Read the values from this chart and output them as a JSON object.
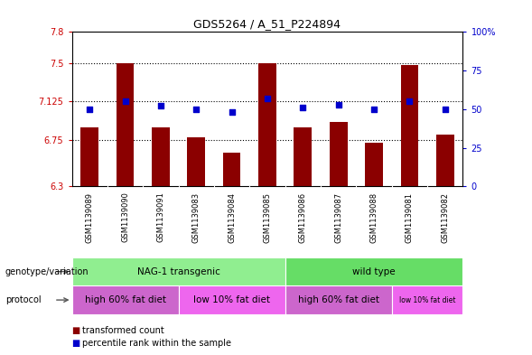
{
  "title": "GDS5264 / A_51_P224894",
  "samples": [
    "GSM1139089",
    "GSM1139090",
    "GSM1139091",
    "GSM1139083",
    "GSM1139084",
    "GSM1139085",
    "GSM1139086",
    "GSM1139087",
    "GSM1139088",
    "GSM1139081",
    "GSM1139082"
  ],
  "red_values": [
    6.87,
    7.5,
    6.87,
    6.78,
    6.63,
    7.5,
    6.87,
    6.93,
    6.72,
    7.48,
    6.8
  ],
  "blue_values": [
    50,
    55,
    52,
    50,
    48,
    57,
    51,
    53,
    50,
    55,
    50
  ],
  "ylim_left": [
    6.3,
    7.8
  ],
  "ylim_right": [
    0,
    100
  ],
  "yticks_left": [
    6.3,
    6.75,
    7.125,
    7.5,
    7.8
  ],
  "yticks_left_labels": [
    "6.3",
    "6.75",
    "7.125",
    "7.5",
    "7.8"
  ],
  "yticks_right": [
    0,
    25,
    50,
    75,
    100
  ],
  "yticks_right_labels": [
    "0",
    "25",
    "50",
    "75",
    "100%"
  ],
  "hlines": [
    6.75,
    7.125,
    7.5
  ],
  "bar_color": "#8B0000",
  "dot_color": "#0000CC",
  "bar_width": 0.5,
  "genotype_groups": [
    {
      "label": "NAG-1 transgenic",
      "xstart": 0,
      "xend": 6,
      "color": "#90EE90"
    },
    {
      "label": "wild type",
      "xstart": 6,
      "xend": 11,
      "color": "#66DD66"
    }
  ],
  "protocol_groups": [
    {
      "label": "high 60% fat diet",
      "xstart": 0,
      "xend": 3,
      "color": "#CC66CC"
    },
    {
      "label": "low 10% fat diet",
      "xstart": 3,
      "xend": 6,
      "color": "#EE66EE"
    },
    {
      "label": "high 60% fat diet",
      "xstart": 6,
      "xend": 9,
      "color": "#CC66CC"
    },
    {
      "label": "low 10% fat diet",
      "xstart": 9,
      "xend": 11,
      "color": "#EE66EE"
    }
  ],
  "legend_red": "transformed count",
  "legend_blue": "percentile rank within the sample",
  "genotype_label": "genotype/variation",
  "protocol_label": "protocol",
  "bg_color": "#FFFFFF",
  "plot_bg_color": "#FFFFFF",
  "tick_color_left": "#CC0000",
  "tick_color_right": "#0000CC",
  "sample_bg_color": "#C8C8C8",
  "arrow_color": "#555555"
}
